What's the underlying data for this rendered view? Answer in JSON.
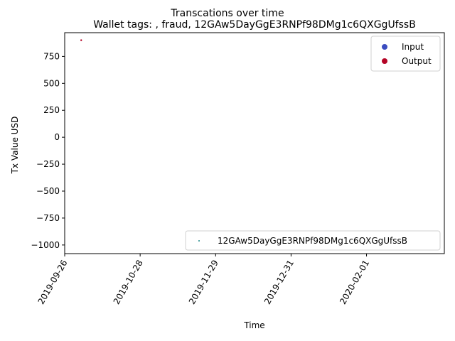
{
  "chart_data": {
    "type": "scatter",
    "title": "Transcations over time",
    "subtitle": "Wallet tags: , fraud, 12GAw5DayGgE3RNPf98DMg1c6QXGgUfssB",
    "xlabel": "Time",
    "ylabel": "Tx Value USD",
    "x_type": "date",
    "xlim": [
      "2019-09-26",
      "2020-03-05"
    ],
    "ylim": [
      -1080,
      970
    ],
    "x_ticks": [
      "2019-09-26",
      "2019-10-28",
      "2019-11-29",
      "2019-12-31",
      "2020-02-01"
    ],
    "y_ticks": [
      750,
      500,
      250,
      0,
      -250,
      -500,
      -750,
      -1000
    ],
    "y_tick_labels": [
      "750",
      "500",
      "250",
      "0",
      "−250",
      "−500",
      "−750",
      "−1000"
    ],
    "grid": false,
    "series": [
      {
        "name": "12GAw5DayGgE3RNPf98DMg1c6QXGgUfssB",
        "points": [
          {
            "x": "2019-10-03",
            "y": 900,
            "direction": "Output"
          }
        ]
      }
    ],
    "direction_legend": {
      "placement": "top-right",
      "entries": [
        {
          "label": "Input",
          "color": "#3b4cc0"
        },
        {
          "label": "Output",
          "color": "#b40426"
        }
      ]
    },
    "series_legend": {
      "placement": "lower-right",
      "entries": [
        {
          "label": "12GAw5DayGgE3RNPf98DMg1c6QXGgUfssB",
          "color": "#1f8a8a"
        }
      ]
    }
  }
}
